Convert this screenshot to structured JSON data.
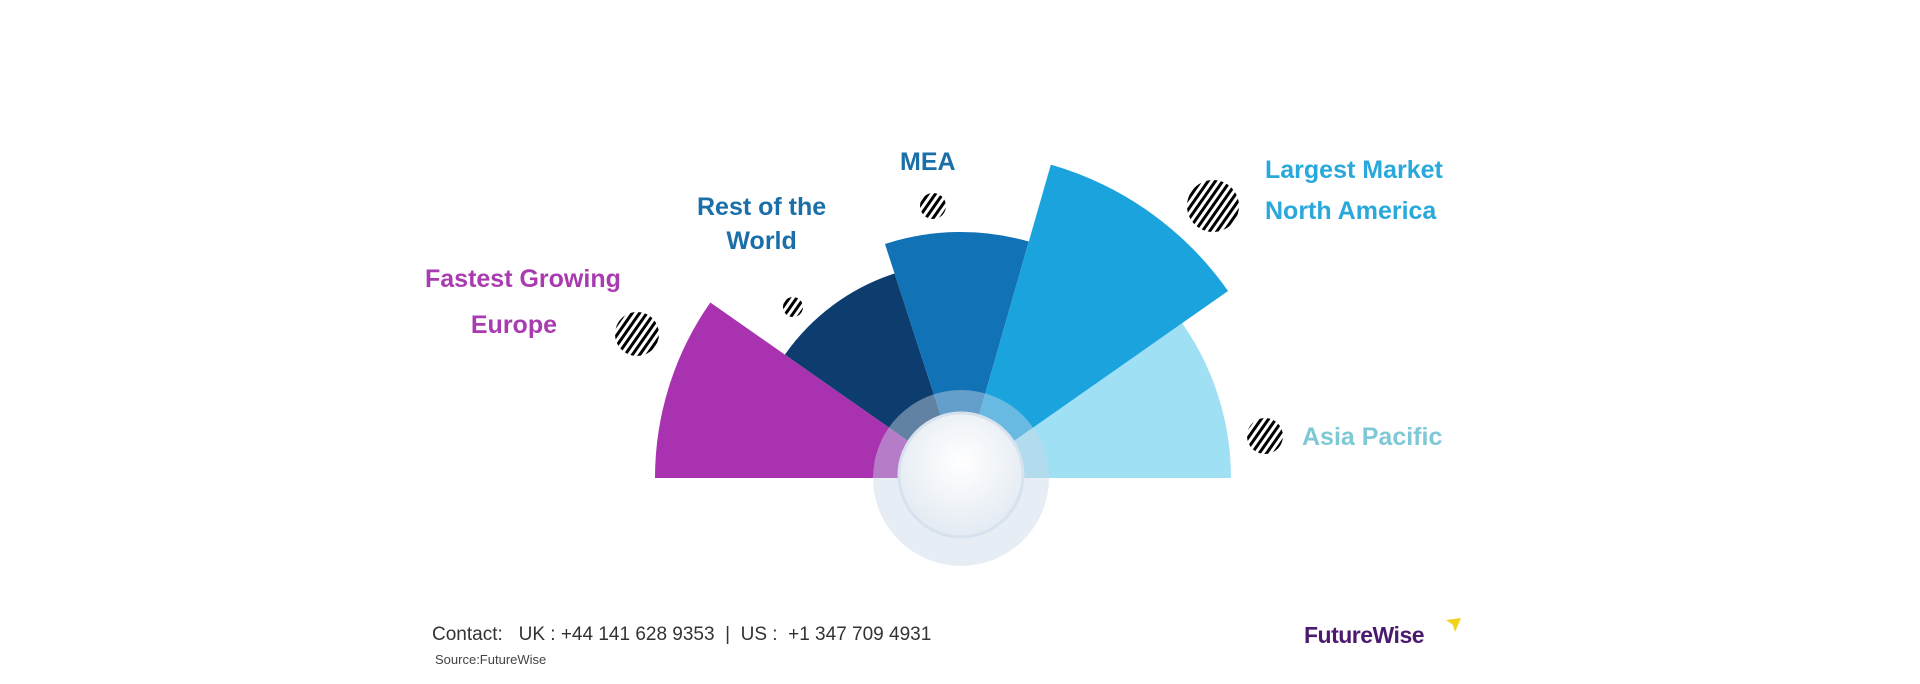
{
  "chart_data": {
    "type": "pie",
    "style": "half-fan",
    "segments": [
      {
        "key": "europe",
        "lines": [
          "Fastest Growing",
          "Europe"
        ],
        "color": "#a832b0"
      },
      {
        "key": "rest_of_world",
        "lines": [
          "Rest of the",
          "World"
        ],
        "color": "#0d3d6e"
      },
      {
        "key": "mea",
        "lines": [
          "MEA"
        ],
        "color": "#1172b5"
      },
      {
        "key": "north_america",
        "lines": [
          "Largest Market",
          "North America"
        ],
        "color": "#1ba3de"
      },
      {
        "key": "asia_pacific",
        "lines": [
          "Asia Pacific"
        ],
        "color": "#9fe0f5"
      }
    ]
  },
  "label_colors": {
    "europe": "#a93bb0",
    "rest_of_world": "#1a6fa8",
    "mea": "#1a6fa8",
    "north_america": "#29a8dc",
    "asia_pacific": "#7fc9d6"
  },
  "footer": {
    "contact": "Contact:   UK : +44 141 628 9353  |  US :  +1 347 709 4931",
    "source": "Source:FutureWise",
    "logo": "FutureWise"
  }
}
